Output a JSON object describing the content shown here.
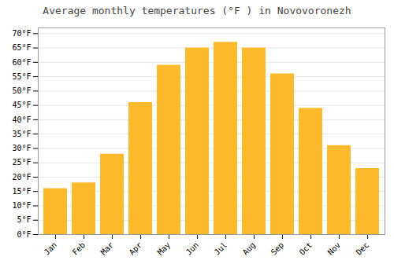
{
  "chart_data": {
    "type": "bar",
    "title": "Average monthly temperatures (°F ) in Novovoronezh",
    "categories": [
      "Jan",
      "Feb",
      "Mar",
      "Apr",
      "May",
      "Jun",
      "Jul",
      "Aug",
      "Sep",
      "Oct",
      "Nov",
      "Dec"
    ],
    "values": [
      16,
      18,
      28,
      46,
      59,
      65,
      67,
      65,
      56,
      44,
      31,
      23
    ],
    "color": "#FDBA2D",
    "ylim": [
      0,
      72
    ],
    "yticks": [
      {
        "value": 0,
        "label": "0°F"
      },
      {
        "value": 5,
        "label": "5°F"
      },
      {
        "value": 10,
        "label": "10°F"
      },
      {
        "value": 15,
        "label": "15°F"
      },
      {
        "value": 20,
        "label": "20°F"
      },
      {
        "value": 25,
        "label": "25°F"
      },
      {
        "value": 30,
        "label": "30°F"
      },
      {
        "value": 35,
        "label": "35°F"
      },
      {
        "value": 40,
        "label": "40°F"
      },
      {
        "value": 45,
        "label": "45°F"
      },
      {
        "value": 50,
        "label": "50°F"
      },
      {
        "value": 55,
        "label": "55°F"
      },
      {
        "value": 60,
        "label": "60°F"
      },
      {
        "value": 65,
        "label": "65°F"
      },
      {
        "value": 70,
        "label": "70°F"
      }
    ],
    "grid": true
  }
}
